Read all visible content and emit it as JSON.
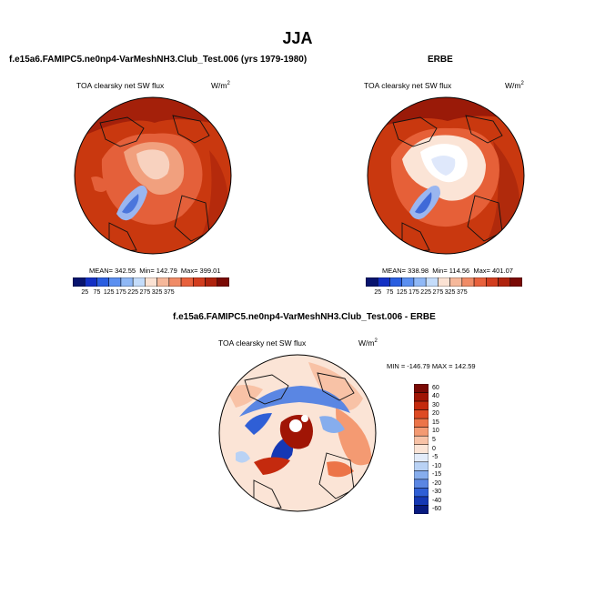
{
  "season": "JJA",
  "panels": {
    "model": {
      "title": "f.e15a6.FAMIPC5.ne0np4-VarMeshNH3.Club_Test.006 (yrs 1979-1980)",
      "var": "TOA clearsky net SW flux",
      "units": "W/m",
      "units_sup": "2",
      "mean": "MEAN= 342.55",
      "min": "Min= 142.79",
      "max": "Max= 399.01"
    },
    "obs": {
      "title": "ERBE",
      "var": "TOA clearsky net SW flux",
      "units": "W/m",
      "units_sup": "2",
      "mean": "MEAN= 338.98",
      "min": "Min= 114.56",
      "max": "Max= 401.07"
    },
    "diff": {
      "title": "f.e15a6.FAMIPC5.ne0np4-VarMeshNH3.Club_Test.006 - ERBE",
      "var": "TOA clearsky net SW flux",
      "units": "W/m",
      "units_sup": "2",
      "minmax": "MIN = -146.79  MAX = 142.59"
    }
  },
  "chart_data": [
    {
      "type": "heatmap",
      "title": "f.e15a6.FAMIPC5.ne0np4-VarMeshNH3.Club_Test.006 (yrs 1979-1980)",
      "variable": "TOA clearsky net SW flux",
      "units": "W/m2",
      "projection": "north polar stereographic",
      "mean": 342.55,
      "min": 142.79,
      "max": 399.01,
      "colorbar_ticks": [
        "25",
        "75",
        "125",
        "175",
        "225",
        "275",
        "325",
        "375"
      ]
    },
    {
      "type": "heatmap",
      "title": "ERBE",
      "variable": "TOA clearsky net SW flux",
      "units": "W/m2",
      "projection": "north polar stereographic",
      "mean": 338.98,
      "min": 114.56,
      "max": 401.07,
      "colorbar_ticks": [
        "25",
        "75",
        "125",
        "175",
        "225",
        "275",
        "325",
        "375"
      ]
    },
    {
      "type": "heatmap",
      "title": "f.e15a6.FAMIPC5.ne0np4-VarMeshNH3.Club_Test.006 - ERBE",
      "variable": "TOA clearsky net SW flux",
      "units": "W/m2",
      "projection": "north polar stereographic",
      "min": -146.79,
      "max": 142.59,
      "colorbar_levels": [
        "60",
        "40",
        "30",
        "20",
        "15",
        "10",
        "5",
        "0",
        "-5",
        "-10",
        "-15",
        "-20",
        "-30",
        "-40",
        "-60"
      ]
    }
  ],
  "colors": {
    "seq": [
      "#08146e",
      "#1330c4",
      "#2a5ee0",
      "#5b8ff0",
      "#8fb8f6",
      "#c4dcfa",
      "#fbe2d3",
      "#f6b89a",
      "#f08b66",
      "#e8613c",
      "#d23d1e",
      "#b0240e",
      "#7a0a05"
    ],
    "div": [
      "#7a0a05",
      "#a01505",
      "#c42a0e",
      "#de4a24",
      "#ec7448",
      "#f49a72",
      "#f8c2a6",
      "#fbe4d6",
      "#e3ecfa",
      "#b9d2f5",
      "#86aded",
      "#5a86e3",
      "#2f5fd6",
      "#1538b4",
      "#081a80"
    ]
  }
}
